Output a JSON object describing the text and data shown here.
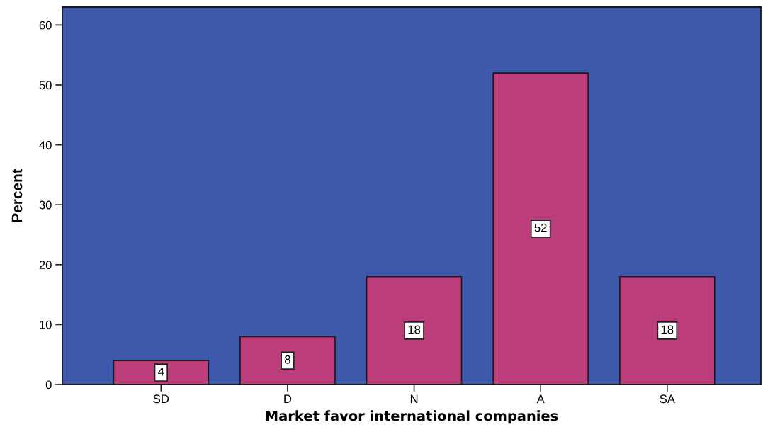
{
  "chart_data": {
    "type": "bar",
    "categories": [
      "SD",
      "D",
      "N",
      "A",
      "SA"
    ],
    "values": [
      4,
      8,
      18,
      52,
      18
    ],
    "color": "#bb3e7b",
    "xlabel": "Market favor international companies",
    "ylabel": "Percent",
    "ylim": [
      0,
      63
    ],
    "yticks": [
      0,
      10,
      20,
      30,
      40,
      50,
      60
    ],
    "data_labels": true,
    "grid": false,
    "legend": false
  }
}
